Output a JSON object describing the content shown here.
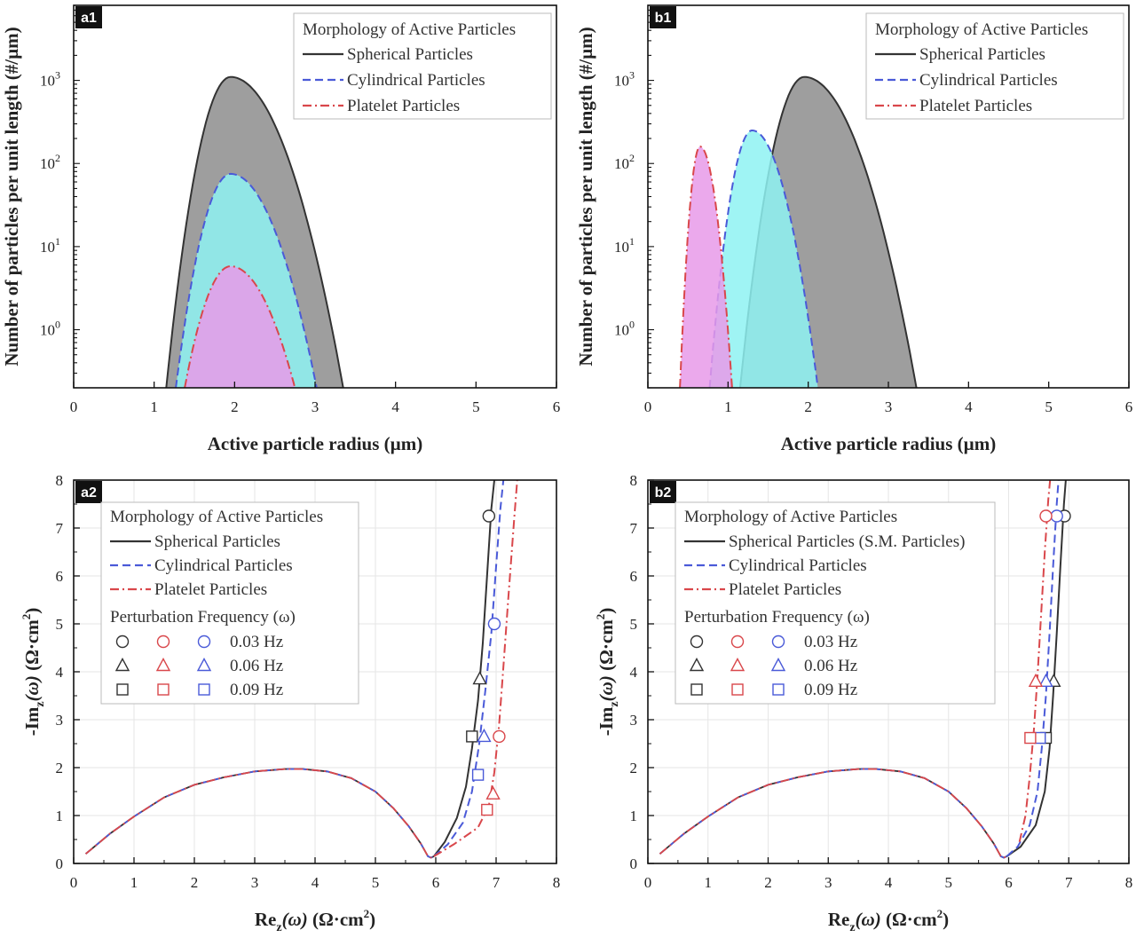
{
  "colors": {
    "spherical": "#333333",
    "cylindrical": "#4a5ad8",
    "platelet": "#d9474b",
    "fill_spherical": "#9e9e9e",
    "fill_cylindrical": "#8ef2f2",
    "fill_platelet": "#e79ae9"
  },
  "chart_data": [
    {
      "id": "a1",
      "type": "area",
      "badge": "a1",
      "xlabel": "Active particle radius (µm)",
      "ylabel": "Number of particles per unit length (#/µm)",
      "xlim": [
        0,
        6
      ],
      "ylim": [
        0.2,
        8000
      ],
      "yscale": "log",
      "xticks": [
        "0",
        "1",
        "2",
        "3",
        "4",
        "5",
        "6"
      ],
      "yticks": [
        {
          "value": 1,
          "base": "10",
          "exp": "0"
        },
        {
          "value": 10,
          "base": "10",
          "exp": "1"
        },
        {
          "value": 100,
          "base": "10",
          "exp": "2"
        },
        {
          "value": 1000,
          "base": "10",
          "exp": "3"
        }
      ],
      "legend": {
        "title": "Morphology of Active Particles",
        "placement": "top-right",
        "items": [
          {
            "label": "Spherical Particles",
            "key": "spherical"
          },
          {
            "label": "Cylindrical Particles",
            "key": "cylindrical"
          },
          {
            "label": "Platelet Particles",
            "key": "platelet"
          }
        ]
      },
      "series": [
        {
          "key": "spherical",
          "style": "solid",
          "peak_x": 1.95,
          "peak_y": 1100,
          "x_at_ymin_left": 1.15,
          "x_at_ymin_right": 3.35
        },
        {
          "key": "cylindrical",
          "style": "dash",
          "peak_x": 1.95,
          "peak_y": 75,
          "x_at_ymin_left": 1.27,
          "x_at_ymin_right": 3.02
        },
        {
          "key": "platelet",
          "style": "dashdot",
          "peak_x": 1.95,
          "peak_y": 5.8,
          "x_at_ymin_left": 1.38,
          "x_at_ymin_right": 2.75
        }
      ]
    },
    {
      "id": "b1",
      "type": "area",
      "badge": "b1",
      "xlabel": "Active particle radius (µm)",
      "ylabel": "Number of particles per unit length (#/µm)",
      "xlim": [
        0,
        6
      ],
      "ylim": [
        0.2,
        8000
      ],
      "yscale": "log",
      "xticks": [
        "0",
        "1",
        "2",
        "3",
        "4",
        "5",
        "6"
      ],
      "yticks": [
        {
          "value": 1,
          "base": "10",
          "exp": "0"
        },
        {
          "value": 10,
          "base": "10",
          "exp": "1"
        },
        {
          "value": 100,
          "base": "10",
          "exp": "2"
        },
        {
          "value": 1000,
          "base": "10",
          "exp": "3"
        }
      ],
      "legend": {
        "title": "Morphology of Active Particles",
        "placement": "top-right",
        "items": [
          {
            "label": "Spherical Particles",
            "key": "spherical"
          },
          {
            "label": "Cylindrical Particles",
            "key": "cylindrical"
          },
          {
            "label": "Platelet Particles",
            "key": "platelet"
          }
        ]
      },
      "series": [
        {
          "key": "spherical",
          "style": "solid",
          "peak_x": 1.95,
          "peak_y": 1100,
          "x_at_ymin_left": 1.15,
          "x_at_ymin_right": 3.35
        },
        {
          "key": "cylindrical",
          "style": "dash",
          "peak_x": 1.3,
          "peak_y": 250,
          "x_at_ymin_left": 0.77,
          "x_at_ymin_right": 2.12
        },
        {
          "key": "platelet",
          "style": "dashdot",
          "peak_x": 0.65,
          "peak_y": 160,
          "x_at_ymin_left": 0.4,
          "x_at_ymin_right": 1.05
        }
      ]
    },
    {
      "id": "a2",
      "type": "line",
      "badge": "a2",
      "xlabel": {
        "main": "Re",
        "sub": "z",
        "arg": "(ω)",
        "unit": " (Ω·cm",
        "sup": "2",
        "close": ")"
      },
      "ylabel": {
        "main": "-Im",
        "sub": "z",
        "arg": "(ω)",
        "unit": " (Ω·cm",
        "sup": "2",
        "close": ")"
      },
      "xlim": [
        0,
        8
      ],
      "ylim": [
        0,
        8
      ],
      "xticks": [
        "0",
        "1",
        "2",
        "3",
        "4",
        "5",
        "6",
        "7",
        "8"
      ],
      "yticks": [
        "0",
        "1",
        "2",
        "3",
        "4",
        "5",
        "6",
        "7",
        "8"
      ],
      "arc": [
        [
          0.2,
          0.2
        ],
        [
          0.6,
          0.62
        ],
        [
          1.0,
          0.98
        ],
        [
          1.5,
          1.38
        ],
        [
          2.0,
          1.64
        ],
        [
          2.5,
          1.8
        ],
        [
          3.0,
          1.92
        ],
        [
          3.5,
          1.97
        ],
        [
          3.8,
          1.97
        ],
        [
          4.2,
          1.92
        ],
        [
          4.6,
          1.78
        ],
        [
          5.0,
          1.5
        ],
        [
          5.3,
          1.15
        ],
        [
          5.55,
          0.78
        ],
        [
          5.75,
          0.42
        ],
        [
          5.87,
          0.15
        ],
        [
          5.92,
          0.12
        ],
        [
          5.97,
          0.15
        ]
      ],
      "legend": {
        "title": "Morphology of Active Particles",
        "items": [
          {
            "label": "Spherical Particles",
            "key": "spherical"
          },
          {
            "label": "Cylindrical Particles",
            "key": "cylindrical"
          },
          {
            "label": "Platelet Particles",
            "key": "platelet"
          }
        ],
        "freq_title": "Perturbation Frequency (ω)",
        "freqs": [
          {
            "label": "0.03 Hz",
            "marker": "circle"
          },
          {
            "label": "0.06 Hz",
            "marker": "triangle"
          },
          {
            "label": "0.09 Hz",
            "marker": "square"
          }
        ]
      },
      "tails": [
        {
          "key": "spherical",
          "style": "solid",
          "points": [
            [
              5.97,
              0.15
            ],
            [
              6.15,
              0.45
            ],
            [
              6.35,
              0.95
            ],
            [
              6.5,
              1.6
            ],
            [
              6.6,
              2.4
            ],
            [
              6.7,
              3.4
            ],
            [
              6.78,
              4.6
            ],
            [
              6.85,
              6.0
            ],
            [
              6.92,
              7.4
            ],
            [
              6.97,
              8.0
            ]
          ]
        },
        {
          "key": "cylindrical",
          "style": "dash",
          "points": [
            [
              5.97,
              0.15
            ],
            [
              6.2,
              0.4
            ],
            [
              6.45,
              0.85
            ],
            [
              6.6,
              1.5
            ],
            [
              6.72,
              2.5
            ],
            [
              6.82,
              3.6
            ],
            [
              6.92,
              4.8
            ],
            [
              7.0,
              6.2
            ],
            [
              7.07,
              7.4
            ],
            [
              7.12,
              8.0
            ]
          ]
        },
        {
          "key": "platelet",
          "style": "dashdot",
          "points": [
            [
              5.97,
              0.15
            ],
            [
              6.3,
              0.4
            ],
            [
              6.7,
              0.75
            ],
            [
              6.88,
              1.2
            ],
            [
              6.97,
              1.9
            ],
            [
              7.05,
              2.9
            ],
            [
              7.12,
              4.1
            ],
            [
              7.2,
              5.5
            ],
            [
              7.3,
              7.2
            ],
            [
              7.35,
              8.0
            ]
          ]
        }
      ],
      "markers": [
        {
          "key": "spherical",
          "marker": "circle",
          "x": 6.88,
          "y": 7.25
        },
        {
          "key": "spherical",
          "marker": "triangle",
          "x": 6.73,
          "y": 3.85
        },
        {
          "key": "spherical",
          "marker": "square",
          "x": 6.6,
          "y": 2.65
        },
        {
          "key": "cylindrical",
          "marker": "circle",
          "x": 6.97,
          "y": 5.0
        },
        {
          "key": "cylindrical",
          "marker": "triangle",
          "x": 6.8,
          "y": 2.65
        },
        {
          "key": "cylindrical",
          "marker": "square",
          "x": 6.7,
          "y": 1.85
        },
        {
          "key": "platelet",
          "marker": "circle",
          "x": 7.05,
          "y": 2.65
        },
        {
          "key": "platelet",
          "marker": "triangle",
          "x": 6.95,
          "y": 1.45
        },
        {
          "key": "platelet",
          "marker": "square",
          "x": 6.85,
          "y": 1.12
        }
      ]
    },
    {
      "id": "b2",
      "type": "line",
      "badge": "b2",
      "xlabel": {
        "main": "Re",
        "sub": "z",
        "arg": "(ω)",
        "unit": " (Ω·cm",
        "sup": "2",
        "close": ")"
      },
      "ylabel": {
        "main": "-Im",
        "sub": "z",
        "arg": "(ω)",
        "unit": " (Ω·cm",
        "sup": "2",
        "close": ")"
      },
      "xlim": [
        0,
        8
      ],
      "ylim": [
        0,
        8
      ],
      "xticks": [
        "0",
        "1",
        "2",
        "3",
        "4",
        "5",
        "6",
        "7",
        "8"
      ],
      "yticks": [
        "0",
        "1",
        "2",
        "3",
        "4",
        "5",
        "6",
        "7",
        "8"
      ],
      "arc": [
        [
          0.2,
          0.2
        ],
        [
          0.6,
          0.62
        ],
        [
          1.0,
          0.98
        ],
        [
          1.5,
          1.38
        ],
        [
          2.0,
          1.64
        ],
        [
          2.5,
          1.8
        ],
        [
          3.0,
          1.92
        ],
        [
          3.5,
          1.97
        ],
        [
          3.8,
          1.97
        ],
        [
          4.2,
          1.92
        ],
        [
          4.6,
          1.78
        ],
        [
          5.0,
          1.5
        ],
        [
          5.3,
          1.15
        ],
        [
          5.55,
          0.78
        ],
        [
          5.75,
          0.42
        ],
        [
          5.87,
          0.15
        ],
        [
          5.92,
          0.12
        ],
        [
          5.97,
          0.15
        ]
      ],
      "legend": {
        "title": "Morphology of Active Particles",
        "items": [
          {
            "label": "Spherical Particles (S.M. Particles)",
            "key": "spherical"
          },
          {
            "label": "Cylindrical Particles",
            "key": "cylindrical"
          },
          {
            "label": "Platelet Particles",
            "key": "platelet"
          }
        ],
        "freq_title": "Perturbation Frequency (ω)",
        "freqs": [
          {
            "label": "0.03 Hz",
            "marker": "circle"
          },
          {
            "label": "0.06 Hz",
            "marker": "triangle"
          },
          {
            "label": "0.09 Hz",
            "marker": "square"
          }
        ]
      },
      "tails": [
        {
          "key": "spherical",
          "style": "solid",
          "points": [
            [
              5.97,
              0.15
            ],
            [
              6.2,
              0.35
            ],
            [
              6.45,
              0.8
            ],
            [
              6.6,
              1.5
            ],
            [
              6.68,
              2.4
            ],
            [
              6.74,
              3.5
            ],
            [
              6.8,
              4.8
            ],
            [
              6.86,
              6.2
            ],
            [
              6.92,
              7.5
            ],
            [
              6.95,
              8.0
            ]
          ]
        },
        {
          "key": "cylindrical",
          "style": "dash",
          "points": [
            [
              5.97,
              0.15
            ],
            [
              6.15,
              0.35
            ],
            [
              6.35,
              0.8
            ],
            [
              6.48,
              1.5
            ],
            [
              6.55,
              2.4
            ],
            [
              6.62,
              3.5
            ],
            [
              6.68,
              4.8
            ],
            [
              6.74,
              6.2
            ],
            [
              6.8,
              7.5
            ],
            [
              6.83,
              8.0
            ]
          ]
        },
        {
          "key": "platelet",
          "style": "dashdot",
          "points": [
            [
              6.18,
              0.45
            ],
            [
              6.28,
              1.0
            ],
            [
              6.35,
              1.8
            ],
            [
              6.42,
              2.8
            ],
            [
              6.48,
              3.9
            ],
            [
              6.54,
              5.2
            ],
            [
              6.6,
              6.5
            ],
            [
              6.66,
              7.6
            ],
            [
              6.69,
              8.0
            ]
          ]
        }
      ],
      "markers": [
        {
          "key": "spherical",
          "marker": "circle",
          "x": 6.93,
          "y": 7.25
        },
        {
          "key": "spherical",
          "marker": "triangle",
          "x": 6.75,
          "y": 3.8
        },
        {
          "key": "spherical",
          "marker": "square",
          "x": 6.62,
          "y": 2.62
        },
        {
          "key": "cylindrical",
          "marker": "circle",
          "x": 6.8,
          "y": 7.25
        },
        {
          "key": "cylindrical",
          "marker": "triangle",
          "x": 6.62,
          "y": 3.8
        },
        {
          "key": "cylindrical",
          "marker": "square",
          "x": 6.52,
          "y": 2.62
        },
        {
          "key": "platelet",
          "marker": "circle",
          "x": 6.62,
          "y": 7.25
        },
        {
          "key": "platelet",
          "marker": "triangle",
          "x": 6.45,
          "y": 3.8
        },
        {
          "key": "platelet",
          "marker": "square",
          "x": 6.36,
          "y": 2.62
        }
      ]
    }
  ]
}
